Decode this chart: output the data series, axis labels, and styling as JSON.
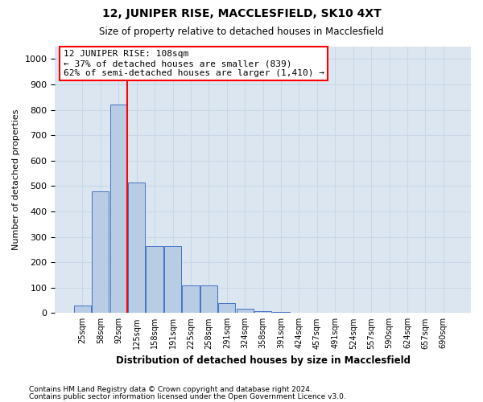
{
  "title": "12, JUNIPER RISE, MACCLESFIELD, SK10 4XT",
  "subtitle": "Size of property relative to detached houses in Macclesfield",
  "xlabel": "Distribution of detached houses by size in Macclesfield",
  "ylabel": "Number of detached properties",
  "bar_labels": [
    "25sqm",
    "58sqm",
    "92sqm",
    "125sqm",
    "158sqm",
    "191sqm",
    "225sqm",
    "258sqm",
    "291sqm",
    "324sqm",
    "358sqm",
    "391sqm",
    "424sqm",
    "457sqm",
    "491sqm",
    "524sqm",
    "557sqm",
    "590sqm",
    "624sqm",
    "657sqm",
    "690sqm"
  ],
  "bar_values": [
    28,
    480,
    820,
    515,
    265,
    265,
    110,
    110,
    38,
    18,
    7,
    5,
    0,
    0,
    0,
    0,
    0,
    0,
    0,
    0,
    0
  ],
  "bar_color": "#b8cce4",
  "bar_edge_color": "#4472c4",
  "grid_color": "#c8d8e8",
  "background_color": "#dce6f1",
  "property_label": "12 JUNIPER RISE: 108sqm",
  "annotation_line1": "← 37% of detached houses are smaller (839)",
  "annotation_line2": "62% of semi-detached houses are larger (1,410) →",
  "red_line_x": 2.5,
  "ylim": [
    0,
    1050
  ],
  "yticks": [
    0,
    100,
    200,
    300,
    400,
    500,
    600,
    700,
    800,
    900,
    1000
  ],
  "footer_line1": "Contains HM Land Registry data © Crown copyright and database right 2024.",
  "footer_line2": "Contains public sector information licensed under the Open Government Licence v3.0."
}
